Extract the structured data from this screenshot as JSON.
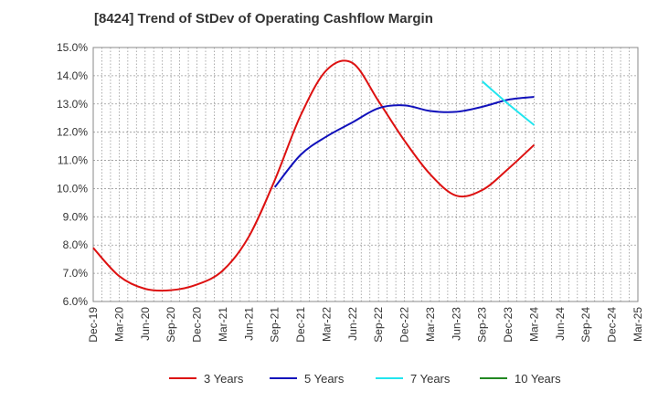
{
  "chart_data": {
    "type": "line",
    "title": "[8424]  Trend of StDev of Operating Cashflow Margin",
    "xlabel": "",
    "ylabel": "",
    "x": [
      "Dec-19",
      "Mar-20",
      "Jun-20",
      "Sep-20",
      "Dec-20",
      "Mar-21",
      "Jun-21",
      "Sep-21",
      "Dec-21",
      "Mar-22",
      "Jun-22",
      "Sep-22",
      "Dec-22",
      "Mar-23",
      "Jun-23",
      "Sep-23",
      "Dec-23",
      "Mar-24",
      "Jun-24",
      "Sep-24",
      "Dec-24",
      "Mar-25"
    ],
    "ylim": [
      6.0,
      15.0
    ],
    "yticks": [
      "6.0%",
      "7.0%",
      "8.0%",
      "9.0%",
      "10.0%",
      "11.0%",
      "12.0%",
      "13.0%",
      "14.0%",
      "15.0%"
    ],
    "grid": true,
    "legend_position": "bottom",
    "series": [
      {
        "name": "3 Years",
        "color": "#dd1111",
        "values": [
          7.9,
          6.9,
          6.45,
          6.4,
          6.6,
          7.1,
          8.3,
          10.3,
          12.6,
          14.2,
          14.45,
          13.1,
          11.7,
          10.5,
          9.75,
          9.95,
          10.7,
          11.55,
          null,
          null,
          null,
          null
        ]
      },
      {
        "name": "5 Years",
        "color": "#1111bb",
        "values": [
          null,
          null,
          null,
          null,
          null,
          null,
          null,
          10.05,
          11.2,
          11.85,
          12.35,
          12.85,
          12.95,
          12.75,
          12.72,
          12.9,
          13.15,
          13.25,
          null,
          null,
          null,
          null
        ]
      },
      {
        "name": "7 Years",
        "color": "#22e5ee",
        "values": [
          null,
          null,
          null,
          null,
          null,
          null,
          null,
          null,
          null,
          null,
          null,
          null,
          null,
          null,
          null,
          13.8,
          13.0,
          12.25,
          null,
          null,
          null,
          null
        ]
      },
      {
        "name": "10 Years",
        "color": "#228822",
        "values": [
          null,
          null,
          null,
          null,
          null,
          null,
          null,
          null,
          null,
          null,
          null,
          null,
          null,
          null,
          null,
          null,
          null,
          null,
          null,
          null,
          null,
          null
        ]
      }
    ]
  }
}
